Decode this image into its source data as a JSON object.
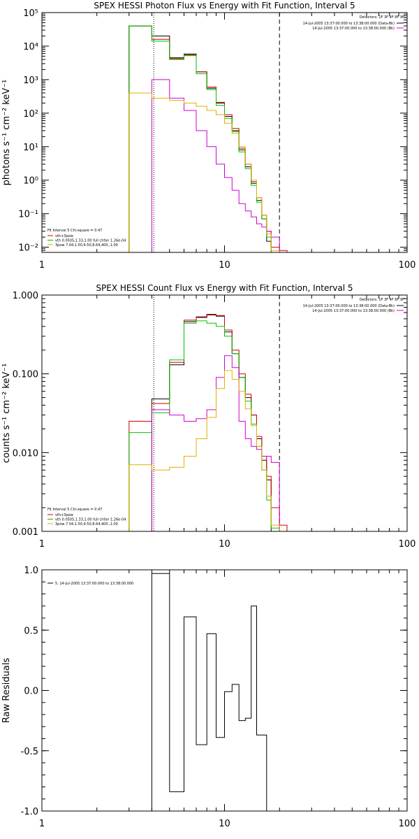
{
  "chart_data": [
    {
      "type": "line",
      "title": "SPEX HESSI Photon Flux vs Energy with Fit Function, Interval 5",
      "ylabel": "photons s⁻¹ cm⁻² keV⁻¹",
      "xlabel": "",
      "x_scale": "log",
      "y_scale": "log",
      "xlim": [
        1,
        100
      ],
      "ylim": [
        0.007,
        100000
      ],
      "x_ticks": [
        "1",
        "10",
        "100"
      ],
      "y_ticks": [
        {
          "value": 0.01,
          "label": "10⁻²"
        },
        {
          "value": 0.1,
          "label": "10⁻¹"
        },
        {
          "value": 1,
          "label": "10⁰"
        },
        {
          "value": 10,
          "label": "10¹"
        },
        {
          "value": 100,
          "label": "10²"
        },
        {
          "value": 1000,
          "label": "10³"
        },
        {
          "value": 10000,
          "label": "10⁴"
        },
        {
          "value": 100000,
          "label": "10⁵"
        }
      ],
      "vlines": [
        {
          "x": 4.1,
          "style": "dotted",
          "color": "#000000"
        },
        {
          "x": 20,
          "style": "dashed",
          "color": "#000000"
        }
      ],
      "detectors": "Detectors: 1F 3F 4F 8F 9F",
      "legend_right": [
        {
          "label": "14-Jul-2005 13:37:00.000 to 13:38:00.000 (Data-Bk)",
          "color": "#000000"
        },
        {
          "label": "14-Jul-2005 13:37:00.000 to 13:38:00.000 (Bk)",
          "color": "#d000d0"
        }
      ],
      "fit_text": "Fit Interval 5   Chi-square = 0.47",
      "legend_left": [
        {
          "label": "vth+3pow",
          "color": "#d00000"
        },
        {
          "label": "vth 0.0505,1.33,1.00  full chfan 1.26e-04",
          "color": "#00c000"
        },
        {
          "label": "3pow 7.04,1.50,9.50,8.64,400.,1.00",
          "color": "#e0b000"
        }
      ],
      "edges": [
        3,
        4,
        5,
        6,
        7,
        8,
        9,
        10,
        11,
        12,
        13,
        14,
        15,
        16,
        17,
        18,
        20,
        22,
        25
      ],
      "series": [
        {
          "color": "#000000",
          "values": [
            40000,
            20000,
            4500,
            5800,
            1700,
            550,
            200,
            80,
            30,
            8,
            2.5,
            0.8,
            0.25,
            0.07,
            0.015,
            null,
            null,
            null
          ]
        },
        {
          "color": "#d00000",
          "values": [
            40000,
            16000,
            4200,
            5500,
            1700,
            600,
            210,
            90,
            35,
            9,
            3,
            0.9,
            0.3,
            0.09,
            0.03,
            0.01,
            0.008,
            0.007
          ]
        },
        {
          "color": "#00c000",
          "values": [
            40000,
            14000,
            4000,
            5200,
            1500,
            500,
            170,
            70,
            28,
            7,
            2.2,
            0.7,
            0.22,
            0.07,
            0.02,
            0.006,
            null,
            null
          ]
        },
        {
          "color": "#d000d0",
          "values": [
            null,
            1000,
            280,
            120,
            30,
            10,
            3,
            1.2,
            0.5,
            0.2,
            0.12,
            0.08,
            0.05,
            0.04,
            0.03,
            0.02,
            null,
            null
          ]
        },
        {
          "color": "#e0b000",
          "values": [
            400,
            280,
            240,
            200,
            160,
            120,
            90,
            50,
            25,
            10,
            3,
            1,
            0.3,
            0.09,
            0.025,
            0.008,
            null,
            null
          ]
        }
      ]
    },
    {
      "type": "line",
      "title": "SPEX HESSI Count Flux vs Energy with Fit Function, Interval 5",
      "ylabel": "counts s⁻¹ cm⁻² keV⁻¹",
      "xlabel": "",
      "x_scale": "log",
      "y_scale": "log",
      "xlim": [
        1,
        100
      ],
      "ylim": [
        0.001,
        1
      ],
      "x_ticks": [
        "1",
        "10",
        "100"
      ],
      "y_ticks": [
        {
          "value": 0.001,
          "label": "0.001"
        },
        {
          "value": 0.01,
          "label": "0.010"
        },
        {
          "value": 0.1,
          "label": "0.100"
        },
        {
          "value": 1,
          "label": "1.000"
        }
      ],
      "vlines": [
        {
          "x": 4.1,
          "style": "dotted",
          "color": "#000000"
        },
        {
          "x": 20,
          "style": "dashed",
          "color": "#000000"
        }
      ],
      "detectors": "Detectors: 1F 3F 4F 8F 9F",
      "legend_right": [
        {
          "label": "14-Jul-2005 13:37:00.000 to 13:38:00.000 (Data-Bk)",
          "color": "#000000"
        },
        {
          "label": "14-Jul-2005 13:37:00.000 to 13:38:00.000 (Bk)",
          "color": "#d000d0"
        }
      ],
      "fit_text": "Fit Interval 5   Chi-square = 0.47",
      "legend_left": [
        {
          "label": "vth+3pow",
          "color": "#d00000"
        },
        {
          "label": "vth 0.0505,1.33,1.00  full chfan 1.26e-04",
          "color": "#00c000"
        },
        {
          "label": "3pow 7.04,1.50,9.50,8.64,400.,1.00",
          "color": "#e0b000"
        }
      ],
      "edges": [
        3,
        4,
        5,
        6,
        7,
        8,
        9,
        10,
        11,
        12,
        13,
        14,
        15,
        16,
        17,
        18,
        20,
        22,
        25
      ],
      "series": [
        {
          "color": "#000000",
          "values": [
            null,
            0.048,
            0.13,
            0.46,
            0.52,
            0.56,
            0.54,
            0.34,
            0.18,
            0.09,
            0.05,
            0.03,
            0.015,
            0.008,
            0.0045,
            null,
            null,
            null
          ]
        },
        {
          "color": "#d00000",
          "values": [
            0.025,
            0.042,
            0.14,
            0.48,
            0.53,
            0.57,
            0.55,
            0.36,
            0.2,
            0.1,
            0.055,
            0.03,
            0.016,
            0.009,
            0.005,
            0.002,
            0.0012,
            null
          ]
        },
        {
          "color": "#00c000",
          "values": [
            0.018,
            0.032,
            0.15,
            0.44,
            0.47,
            0.44,
            0.4,
            0.3,
            0.18,
            0.09,
            0.045,
            0.023,
            0.012,
            0.006,
            0.0025,
            0.0011,
            null,
            null
          ]
        },
        {
          "color": "#d000d0",
          "values": [
            null,
            0.035,
            0.03,
            0.025,
            0.027,
            0.035,
            0.09,
            0.17,
            0.12,
            0.025,
            0.015,
            0.012,
            0.011,
            0.009,
            0.009,
            0.0075,
            null,
            null
          ]
        },
        {
          "color": "#e0b000",
          "values": [
            0.007,
            0.006,
            0.0065,
            0.009,
            0.015,
            0.028,
            0.065,
            0.11,
            0.085,
            0.06,
            0.036,
            0.022,
            0.012,
            0.006,
            0.0028,
            0.0012,
            null,
            null
          ]
        }
      ]
    },
    {
      "type": "line",
      "title": "",
      "ylabel": "Raw Residuals",
      "xlabel": "",
      "x_scale": "log",
      "y_scale": "linear",
      "xlim": [
        1,
        100
      ],
      "ylim": [
        -1.0,
        1.0
      ],
      "x_ticks": [
        "1",
        "10",
        "100"
      ],
      "y_ticks": [
        {
          "value": -1.0,
          "label": "-1.0"
        },
        {
          "value": -0.5,
          "label": "-0.5"
        },
        {
          "value": 0.0,
          "label": "0.0"
        },
        {
          "value": 0.5,
          "label": "0.5"
        },
        {
          "value": 1.0,
          "label": "1.0"
        }
      ],
      "legend_left": [
        {
          "label": "5. 14-Jul-2005 13:37:00.000 to 13:38:00.000",
          "color": "#000000"
        }
      ],
      "edges": [
        4,
        5,
        6,
        7,
        8,
        9,
        10,
        11,
        12,
        13,
        14,
        15,
        16,
        17,
        18,
        20
      ],
      "series": [
        {
          "color": "#000000",
          "values": [
            0.97,
            -0.84,
            0.61,
            -0.45,
            0.47,
            -0.39,
            -0.01,
            0.05,
            -0.25,
            -0.23,
            0.7,
            -0.37,
            -0.37,
            -1.0,
            -1.0
          ]
        }
      ]
    }
  ]
}
